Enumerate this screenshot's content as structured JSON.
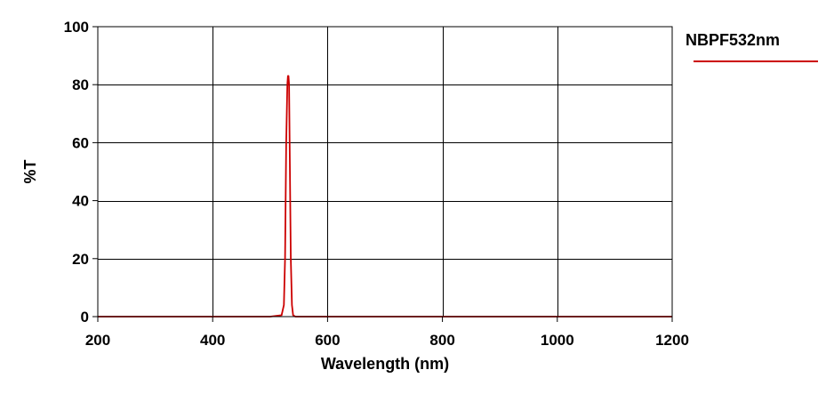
{
  "chart_data": {
    "type": "line",
    "title": "",
    "xlabel": "Wavelength (nm)",
    "ylabel": "%T",
    "xlim": [
      200,
      1200
    ],
    "ylim": [
      0,
      100
    ],
    "xticks": [
      200,
      400,
      600,
      800,
      1000,
      1200
    ],
    "yticks": [
      0,
      20,
      40,
      60,
      80,
      100
    ],
    "grid": true,
    "legend": {
      "placement": "top-right"
    },
    "series": [
      {
        "name": "NBPF532nm",
        "color": "#cc0000",
        "x": [
          200,
          500,
          520,
          524,
          526,
          528,
          530,
          531,
          532,
          533,
          534,
          536,
          538,
          540,
          544,
          560,
          1200
        ],
        "y": [
          0,
          0,
          0.5,
          4,
          20,
          60,
          80,
          83,
          83,
          80,
          60,
          20,
          4,
          0.5,
          0,
          0,
          0
        ]
      }
    ]
  }
}
